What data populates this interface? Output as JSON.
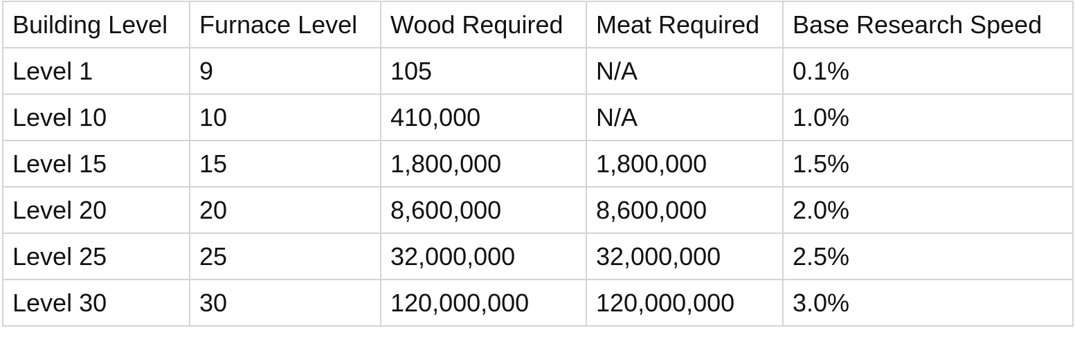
{
  "table": {
    "headers": [
      "Building Level",
      "Furnace Level",
      "Wood Required",
      "Meat Required",
      "Base Research Speed"
    ],
    "rows": [
      [
        "Level 1",
        "9",
        "105",
        "N/A",
        "0.1%"
      ],
      [
        "Level 10",
        "10",
        "410,000",
        "N/A",
        "1.0%"
      ],
      [
        "Level 15",
        "15",
        "1,800,000",
        "1,800,000",
        "1.5%"
      ],
      [
        "Level 20",
        "20",
        "8,600,000",
        "8,600,000",
        "2.0%"
      ],
      [
        "Level 25",
        "25",
        "32,000,000",
        "32,000,000",
        "2.5%"
      ],
      [
        "Level 30",
        "30",
        "120,000,000",
        "120,000,000",
        "3.0%"
      ]
    ]
  }
}
